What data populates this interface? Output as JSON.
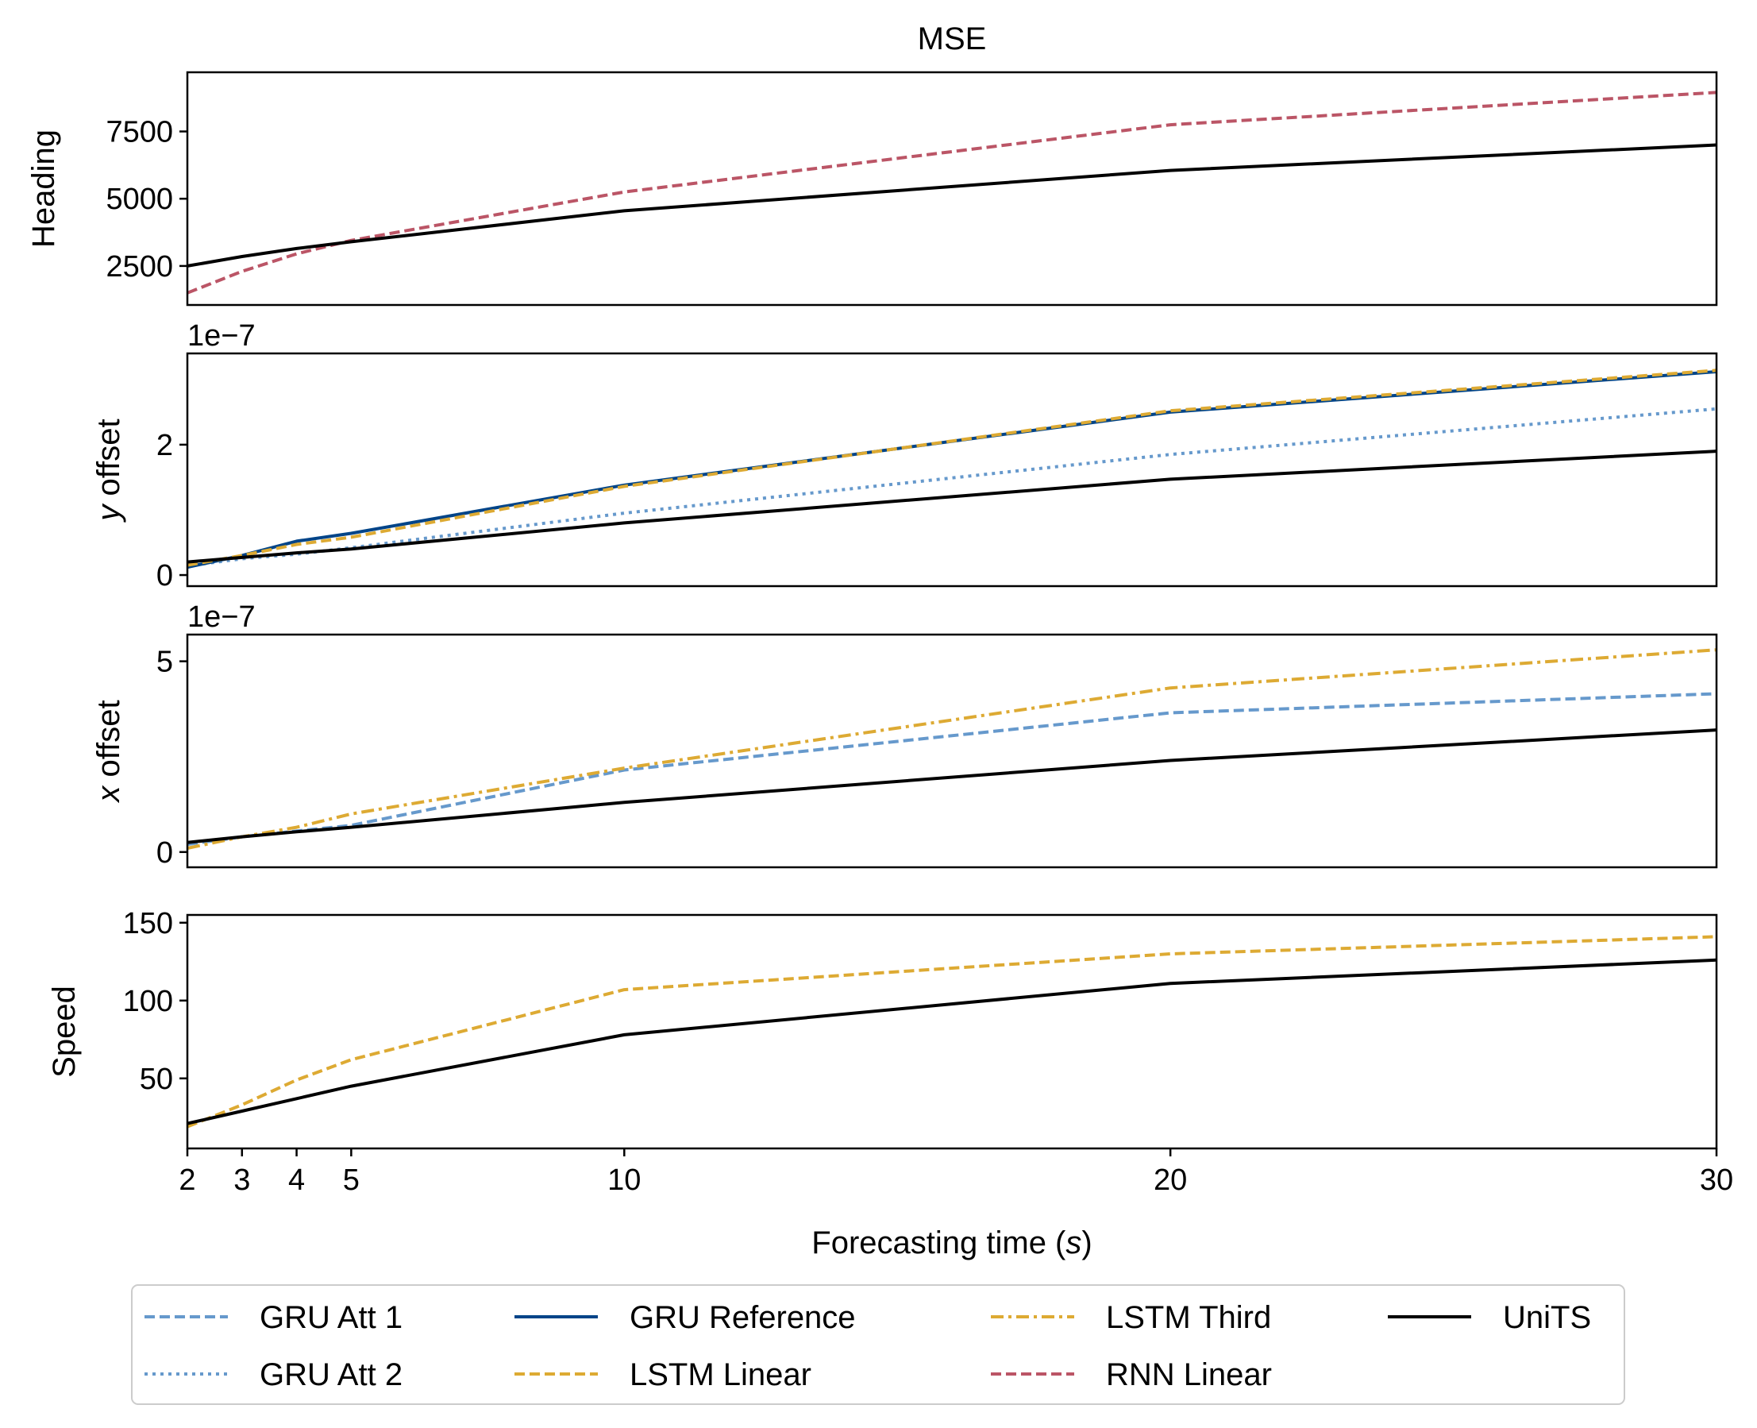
{
  "figure_title": "MSE",
  "xlabel_main": "Forecasting time (",
  "xlabel_var": "s",
  "xlabel_end": ")",
  "colors": {
    "gru_att_1": "#6699cc",
    "gru_att_2": "#6699cc",
    "gru_reference": "#004488",
    "lstm_linear": "#ddaa33",
    "lstm_third": "#ddaa33",
    "rnn_linear": "#bb5566",
    "units": "#000000"
  },
  "legend": [
    {
      "key": "gru_att_1",
      "label": "GRU Att 1",
      "dash": "dashed"
    },
    {
      "key": "gru_att_2",
      "label": "GRU Att 2",
      "dash": "dotted"
    },
    {
      "key": "gru_reference",
      "label": "GRU Reference",
      "dash": "solid"
    },
    {
      "key": "lstm_linear",
      "label": "LSTM Linear",
      "dash": "dashed"
    },
    {
      "key": "lstm_third",
      "label": "LSTM Third",
      "dash": "dashdot"
    },
    {
      "key": "rnn_linear",
      "label": "RNN Linear",
      "dash": "dashed"
    },
    {
      "key": "units",
      "label": "UniTS",
      "dash": "solid"
    }
  ],
  "chart_data": [
    {
      "type": "line",
      "ylabel": "Heading",
      "ylabel_var": "",
      "ylabel_rest": "Heading",
      "offset_text": "",
      "title": "MSE",
      "x": [
        2,
        3,
        4,
        5,
        10,
        20,
        30
      ],
      "xlim": [
        2,
        30
      ],
      "ylim": [
        1050,
        9700
      ],
      "yticks": [
        2500,
        5000,
        7500
      ],
      "ytick_labels": [
        "2500",
        "5000",
        "7500"
      ],
      "series": [
        {
          "key": "rnn_linear",
          "values": [
            1500,
            2300,
            2950,
            3450,
            5250,
            7750,
            8950
          ]
        },
        {
          "key": "units",
          "values": [
            2500,
            2850,
            3150,
            3400,
            4550,
            6050,
            7000
          ]
        }
      ]
    },
    {
      "type": "line",
      "ylabel": "y offset",
      "ylabel_var": "y",
      "ylabel_rest": " offset",
      "offset_text": "1e−7",
      "x": [
        2,
        3,
        4,
        5,
        10,
        20,
        30
      ],
      "xlim": [
        2,
        30
      ],
      "ylim": [
        -0.17,
        3.4
      ],
      "yticks": [
        0,
        2
      ],
      "ytick_labels": [
        "0",
        "2"
      ],
      "series": [
        {
          "key": "gru_att_2",
          "values": [
            0.14,
            0.25,
            0.32,
            0.42,
            0.95,
            1.85,
            2.55
          ]
        },
        {
          "key": "gru_reference",
          "values": [
            0.12,
            0.3,
            0.52,
            0.64,
            1.38,
            2.5,
            3.12
          ]
        },
        {
          "key": "lstm_linear",
          "values": [
            0.15,
            0.3,
            0.47,
            0.58,
            1.36,
            2.52,
            3.14
          ]
        },
        {
          "key": "units",
          "values": [
            0.2,
            0.27,
            0.34,
            0.4,
            0.8,
            1.47,
            1.9
          ]
        }
      ]
    },
    {
      "type": "line",
      "ylabel": "x offset",
      "ylabel_var": "x",
      "ylabel_rest": " offset",
      "offset_text": "1e−7",
      "x": [
        2,
        3,
        4,
        5,
        10,
        20,
        30
      ],
      "xlim": [
        2,
        30
      ],
      "ylim": [
        -0.4,
        5.7
      ],
      "yticks": [
        0,
        5
      ],
      "ytick_labels": [
        "0",
        "5"
      ],
      "series": [
        {
          "key": "gru_att_1",
          "values": [
            0.2,
            0.4,
            0.55,
            0.7,
            2.15,
            3.65,
            4.15
          ]
        },
        {
          "key": "lstm_third",
          "values": [
            0.1,
            0.4,
            0.65,
            1.0,
            2.2,
            4.3,
            5.3
          ]
        },
        {
          "key": "units",
          "values": [
            0.25,
            0.4,
            0.53,
            0.65,
            1.3,
            2.4,
            3.2
          ]
        }
      ]
    },
    {
      "type": "line",
      "ylabel": "Speed",
      "ylabel_var": "",
      "ylabel_rest": "Speed",
      "offset_text": "",
      "x": [
        2,
        3,
        4,
        5,
        10,
        20,
        30
      ],
      "xlim": [
        2,
        30
      ],
      "ylim": [
        5,
        155
      ],
      "yticks": [
        50,
        100,
        150
      ],
      "ytick_labels": [
        "50",
        "100",
        "150"
      ],
      "series": [
        {
          "key": "lstm_linear",
          "values": [
            19,
            33,
            49,
            62,
            107,
            130,
            141
          ]
        },
        {
          "key": "units",
          "values": [
            21,
            29,
            37,
            45,
            78,
            111,
            126
          ]
        }
      ]
    }
  ],
  "xticks": [
    2,
    3,
    4,
    5,
    10,
    20,
    30
  ],
  "xtick_labels": [
    "2",
    "3",
    "4",
    "5",
    "10",
    "20",
    "30"
  ]
}
